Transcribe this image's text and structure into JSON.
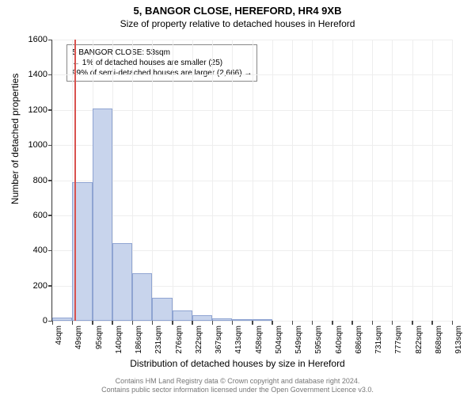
{
  "title_main": "5, BANGOR CLOSE, HEREFORD, HR4 9XB",
  "title_sub": "Size of property relative to detached houses in Hereford",
  "y_axis_label": "Number of detached properties",
  "x_axis_label": "Distribution of detached houses by size in Hereford",
  "chart": {
    "type": "histogram",
    "background_color": "#ffffff",
    "grid_color": "#eeeeee",
    "bar_fill": "#c8d4ec",
    "bar_border": "#8fa4d2",
    "marker_color": "#d9534f",
    "axis_color": "#444444",
    "ylim": [
      0,
      1600
    ],
    "yticks": [
      0,
      200,
      400,
      600,
      800,
      1000,
      1200,
      1400,
      1600
    ],
    "x_labels": [
      "4sqm",
      "49sqm",
      "95sqm",
      "140sqm",
      "186sqm",
      "231sqm",
      "276sqm",
      "322sqm",
      "367sqm",
      "413sqm",
      "458sqm",
      "504sqm",
      "549sqm",
      "595sqm",
      "640sqm",
      "686sqm",
      "731sqm",
      "777sqm",
      "822sqm",
      "868sqm",
      "913sqm"
    ],
    "bars": [
      20,
      790,
      1210,
      440,
      270,
      130,
      60,
      30,
      15,
      10,
      5,
      0,
      0,
      0,
      0,
      0,
      0,
      0,
      0,
      0
    ],
    "marker_bin": 1,
    "label_fontsize": 11
  },
  "annotation": {
    "line1": "5 BANGOR CLOSE: 53sqm",
    "line2": "← 1% of detached houses are smaller (25)",
    "line3": "99% of semi-detached houses are larger (2,666) →"
  },
  "caption": {
    "line1": "Contains HM Land Registry data © Crown copyright and database right 2024.",
    "line2": "Contains public sector information licensed under the Open Government Licence v3.0."
  }
}
